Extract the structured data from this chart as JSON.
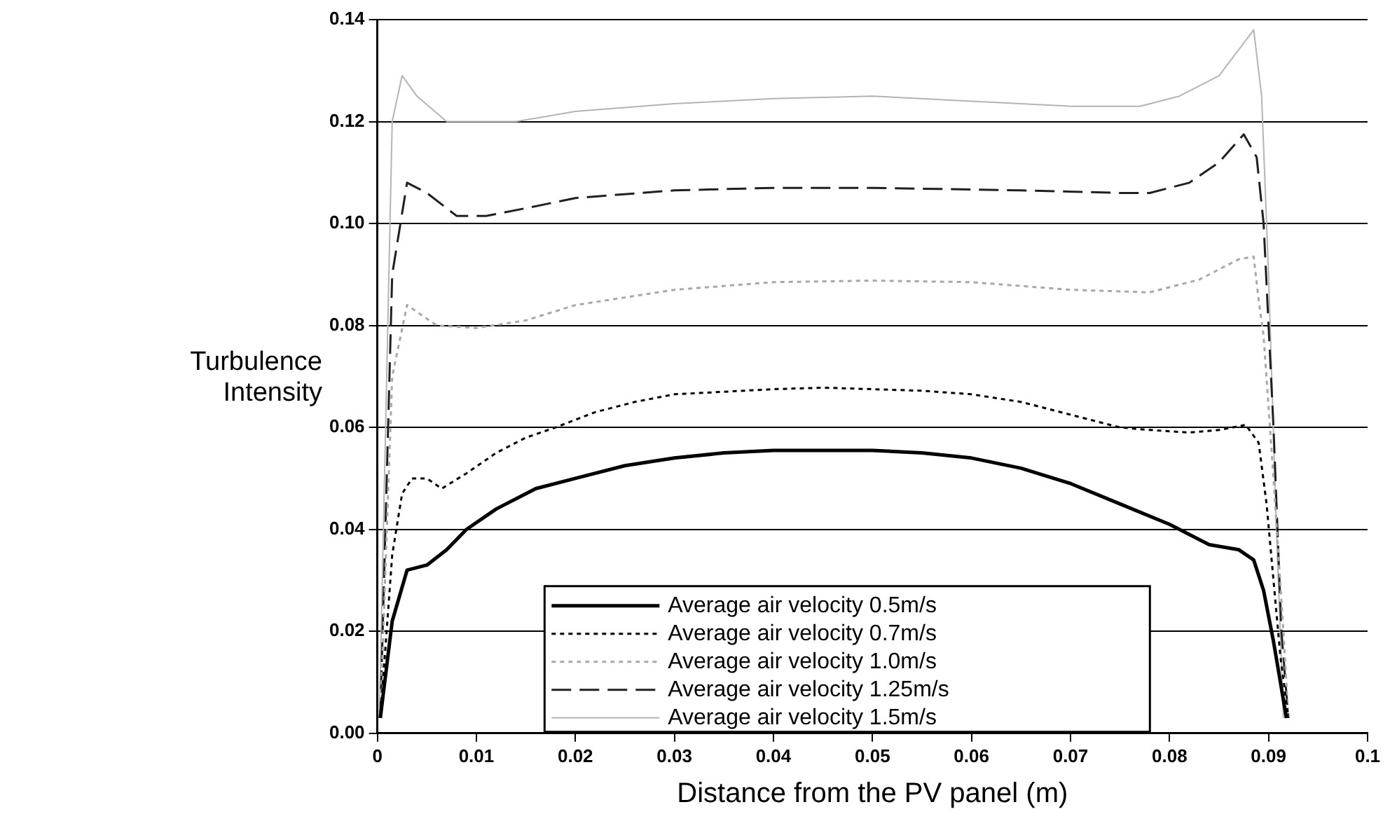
{
  "chart_data": {
    "type": "line",
    "xlabel": "Distance from the PV panel (m)",
    "ylabel": "Turbulence Intensity",
    "xlim": [
      0,
      0.1
    ],
    "xticks": [
      0,
      0.01,
      0.02,
      0.03,
      0.04,
      0.05,
      0.06,
      0.07,
      0.08,
      0.09,
      0.1
    ],
    "ylim": [
      0,
      0.14
    ],
    "yticks": [
      {
        "value": 0,
        "label": "0.00"
      },
      {
        "value": 0.02,
        "label": "0.02"
      },
      {
        "value": 0.04,
        "label": "0.04"
      },
      {
        "value": 0.06,
        "label": "0.06"
      },
      {
        "value": 0.08,
        "label": "0.08"
      },
      {
        "value": 0.1,
        "label": "0.10"
      },
      {
        "value": 0.12,
        "label": "0.12"
      },
      {
        "value": 0.14,
        "label": "0.14"
      }
    ],
    "grid": "y",
    "legend": "bottom",
    "marker": "none",
    "series": [
      {
        "name": "Average air velocity 0.5m/s",
        "color": "#000000",
        "line_style": "solid",
        "x": [
          0.0003,
          0.0015,
          0.003,
          0.005,
          0.007,
          0.009,
          0.012,
          0.016,
          0.02,
          0.025,
          0.03,
          0.035,
          0.04,
          0.045,
          0.05,
          0.055,
          0.06,
          0.065,
          0.07,
          0.075,
          0.08,
          0.084,
          0.087,
          0.0885,
          0.0895,
          0.0905,
          0.0912,
          0.0918
        ],
        "values": [
          0.003,
          0.022,
          0.032,
          0.033,
          0.036,
          0.04,
          0.044,
          0.048,
          0.05,
          0.0525,
          0.054,
          0.055,
          0.0555,
          0.0555,
          0.0555,
          0.055,
          0.054,
          0.052,
          0.049,
          0.045,
          0.041,
          0.037,
          0.036,
          0.034,
          0.028,
          0.018,
          0.01,
          0.003
        ]
      },
      {
        "name": "Average air velocity 0.7m/s",
        "color": "#000000",
        "line_style": "dotted",
        "x": [
          0.0003,
          0.0015,
          0.0025,
          0.0035,
          0.005,
          0.0065,
          0.009,
          0.012,
          0.015,
          0.018,
          0.022,
          0.026,
          0.03,
          0.035,
          0.04,
          0.045,
          0.05,
          0.055,
          0.06,
          0.065,
          0.07,
          0.075,
          0.078,
          0.082,
          0.085,
          0.0877,
          0.089,
          0.0898,
          0.0905,
          0.0912,
          0.092
        ],
        "values": [
          0.003,
          0.035,
          0.047,
          0.05,
          0.05,
          0.048,
          0.051,
          0.055,
          0.058,
          0.06,
          0.063,
          0.065,
          0.0665,
          0.067,
          0.0675,
          0.0678,
          0.0675,
          0.0672,
          0.0665,
          0.065,
          0.0625,
          0.06,
          0.0595,
          0.059,
          0.0595,
          0.0605,
          0.057,
          0.045,
          0.03,
          0.015,
          0.003
        ]
      },
      {
        "name": "Average air velocity 1.0m/s",
        "color": "#a8a8a8",
        "line_style": "dotted",
        "x": [
          0.0003,
          0.0015,
          0.003,
          0.006,
          0.01,
          0.015,
          0.02,
          0.03,
          0.04,
          0.05,
          0.06,
          0.07,
          0.078,
          0.083,
          0.087,
          0.0885,
          0.089,
          0.0895,
          0.0905,
          0.0915,
          0.092
        ],
        "values": [
          0.003,
          0.07,
          0.084,
          0.08,
          0.0795,
          0.081,
          0.084,
          0.087,
          0.0885,
          0.0888,
          0.0885,
          0.087,
          0.0865,
          0.089,
          0.093,
          0.0935,
          0.085,
          0.078,
          0.05,
          0.02,
          0.003
        ]
      },
      {
        "name": "Average air velocity 1.25m/s",
        "color": "#202020",
        "line_style": "dashed",
        "x": [
          0.0003,
          0.0015,
          0.003,
          0.005,
          0.008,
          0.011,
          0.015,
          0.02,
          0.03,
          0.04,
          0.05,
          0.065,
          0.075,
          0.078,
          0.082,
          0.085,
          0.0875,
          0.0888,
          0.0895,
          0.0905,
          0.0913,
          0.092
        ],
        "values": [
          0.003,
          0.09,
          0.108,
          0.106,
          0.1015,
          0.1015,
          0.103,
          0.105,
          0.1065,
          0.107,
          0.107,
          0.1065,
          0.106,
          0.106,
          0.108,
          0.112,
          0.1175,
          0.113,
          0.1,
          0.06,
          0.02,
          0.003
        ]
      },
      {
        "name": "Average air velocity 1.5m/s",
        "color": "#b4b4b4",
        "line_style": "solid",
        "x": [
          0.0002,
          0.0015,
          0.0025,
          0.004,
          0.007,
          0.014,
          0.02,
          0.03,
          0.04,
          0.05,
          0.06,
          0.07,
          0.077,
          0.081,
          0.085,
          0.0885,
          0.0893,
          0.09,
          0.0908,
          0.0915
        ],
        "values": [
          0.003,
          0.12,
          0.129,
          0.125,
          0.12,
          0.12,
          0.122,
          0.1235,
          0.1245,
          0.125,
          0.124,
          0.123,
          0.123,
          0.125,
          0.129,
          0.138,
          0.125,
          0.09,
          0.04,
          0.003
        ]
      }
    ]
  }
}
